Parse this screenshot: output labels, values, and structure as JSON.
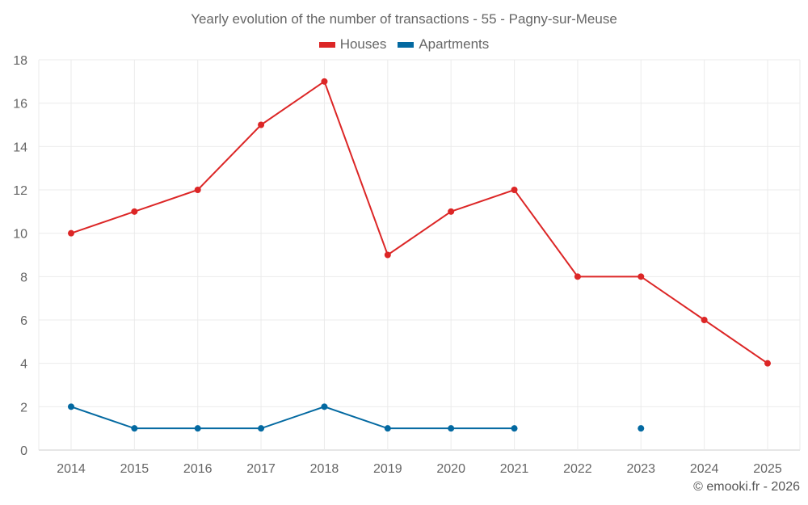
{
  "chart_data": {
    "type": "line",
    "title": "Yearly evolution of the number of transactions - 55 - Pagny-sur-Meuse",
    "xlabel": "",
    "ylabel": "",
    "categories": [
      "2014",
      "2015",
      "2016",
      "2017",
      "2018",
      "2019",
      "2020",
      "2021",
      "2022",
      "2023",
      "2024",
      "2025"
    ],
    "ylim": [
      0,
      18
    ],
    "yticks": [
      0,
      2,
      4,
      6,
      8,
      10,
      12,
      14,
      16,
      18
    ],
    "grid": true,
    "legend_position": "top-center",
    "series": [
      {
        "name": "Houses",
        "color": "#dc2626",
        "values": [
          10,
          11,
          12,
          15,
          17,
          9,
          11,
          12,
          8,
          8,
          6,
          4
        ]
      },
      {
        "name": "Apartments",
        "color": "#0369a1",
        "values": [
          2,
          1,
          1,
          1,
          2,
          1,
          1,
          1,
          null,
          1,
          null,
          null
        ]
      }
    ]
  },
  "credit": "© emooki.fr - 2026"
}
